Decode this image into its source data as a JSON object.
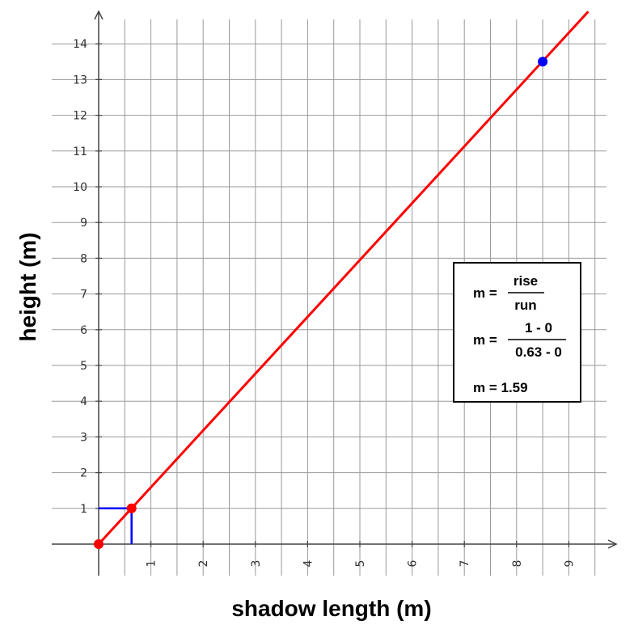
{
  "chart_data": {
    "type": "line",
    "xlabel": "shadow length (m)",
    "ylabel": "height (m)",
    "xlim": [
      0,
      9.9
    ],
    "ylim": [
      0,
      14.9
    ],
    "x_ticks": [
      1,
      2,
      3,
      4,
      5,
      6,
      7,
      8,
      9
    ],
    "y_ticks": [
      1,
      2,
      3,
      4,
      5,
      6,
      7,
      8,
      9,
      10,
      11,
      12,
      13,
      14
    ],
    "grid": true,
    "line": {
      "slope": 1.59,
      "intercept": 0,
      "color": "#ff0000"
    },
    "points": [
      {
        "x": 0,
        "y": 0,
        "color": "#ff0000"
      },
      {
        "x": 0.63,
        "y": 1,
        "color": "#ff0000"
      },
      {
        "x": 8.5,
        "y": 13.5,
        "color": "#0000ff"
      }
    ],
    "rise_run_guide": {
      "x": 0.63,
      "y": 1,
      "color": "#0000ff"
    },
    "annotation": {
      "line1_prefix": "m =",
      "line1_num": "rise",
      "line1_den": "run",
      "line2_prefix": "m =",
      "line2_num": "1 - 0",
      "line2_den": "0.63 - 0",
      "line3": "m = 1.59"
    }
  }
}
